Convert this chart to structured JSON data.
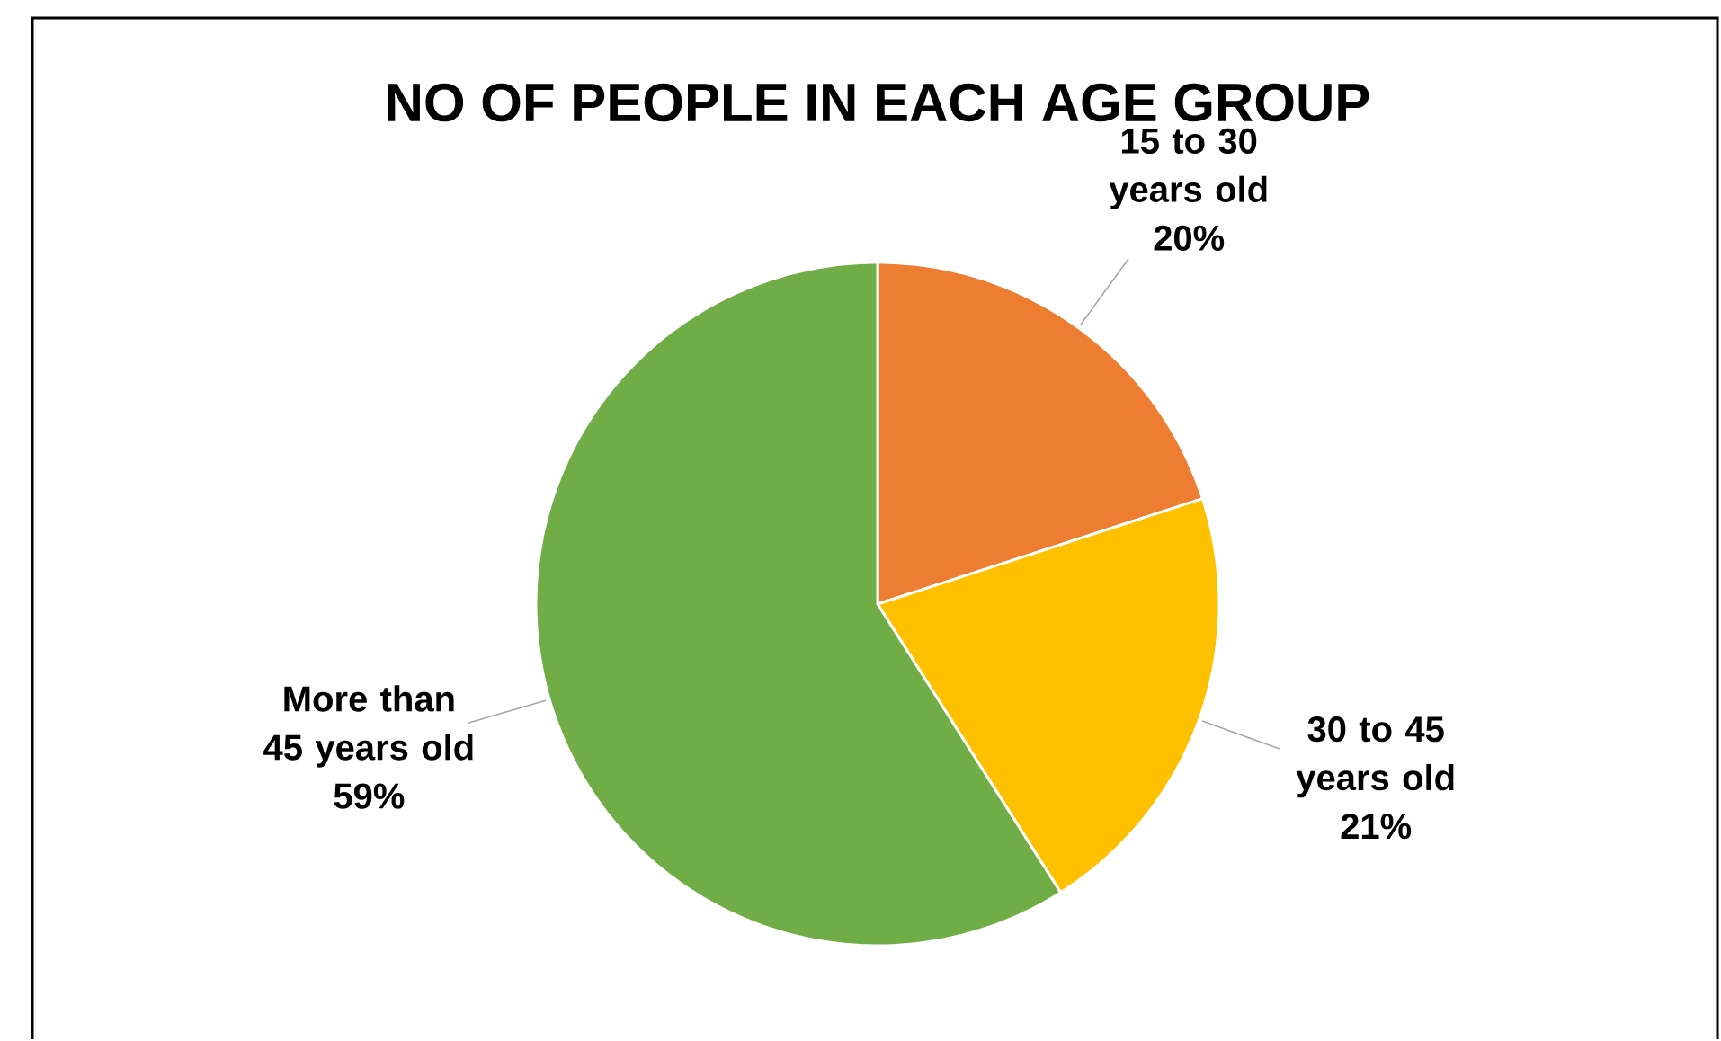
{
  "chart_data": {
    "type": "pie",
    "title": "NO OF PEOPLE IN EACH AGE GROUP",
    "categories": [
      "15 to 30 years old",
      "30 to 45 years old",
      "More than 45 years old"
    ],
    "values": [
      20,
      21,
      59
    ],
    "value_labels": [
      "20%",
      "21%",
      "59%"
    ],
    "colors": [
      "#ed7d31",
      "#ffc000",
      "#70ad47"
    ]
  }
}
